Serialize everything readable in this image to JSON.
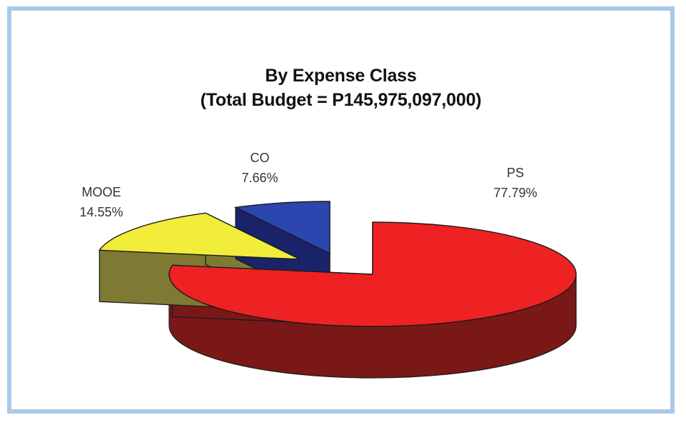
{
  "chart_data": {
    "type": "pie",
    "title": "By Expense Class",
    "subtitle": "(Total Budget = P145,975,097,000)",
    "slices": [
      {
        "label": "PS",
        "value": 77.79,
        "value_text": "77.79%",
        "color": "#ee2222",
        "side_color": "#7a1818"
      },
      {
        "label": "MOOE",
        "value": 14.55,
        "value_text": "14.55%",
        "color": "#f2ec3a",
        "side_color": "#7e7a34"
      },
      {
        "label": "CO",
        "value": 7.66,
        "value_text": "7.66%",
        "color": "#2c46b0",
        "side_color": "#1a236a"
      }
    ],
    "style": "3d-exploded",
    "border_color": "#a9c9e9"
  }
}
